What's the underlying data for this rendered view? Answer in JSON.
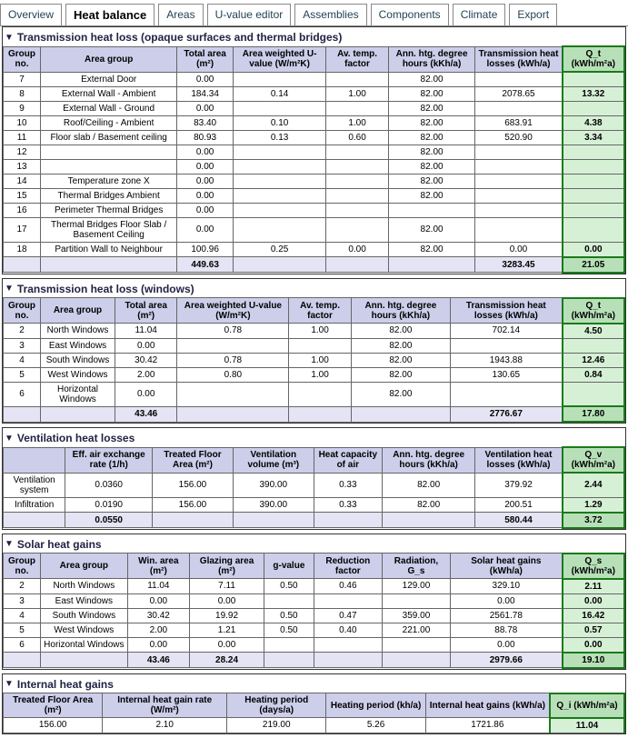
{
  "tabs": [
    "Overview",
    "Heat balance",
    "Areas",
    "U-value editor",
    "Assemblies",
    "Components",
    "Climate",
    "Export"
  ],
  "activeTab": 1,
  "s1": {
    "title": "Transmission heat loss (opaque surfaces and thermal bridges)",
    "headers": [
      "Group no.",
      "Area group",
      "Total area (m²)",
      "Area weighted U-value (W/m²K)",
      "Av. temp. factor",
      "Ann. htg. degree hours (kKh/a)",
      "Transmission heat losses (kWh/a)",
      "Q_t (kWh/m²a)"
    ],
    "rows": [
      [
        "7",
        "External Door",
        "0.00",
        "",
        "",
        "82.00",
        "",
        ""
      ],
      [
        "8",
        "External Wall - Ambient",
        "184.34",
        "0.14",
        "1.00",
        "82.00",
        "2078.65",
        "13.32"
      ],
      [
        "9",
        "External Wall - Ground",
        "0.00",
        "",
        "",
        "82.00",
        "",
        ""
      ],
      [
        "10",
        "Roof/Ceiling - Ambient",
        "83.40",
        "0.10",
        "1.00",
        "82.00",
        "683.91",
        "4.38"
      ],
      [
        "11",
        "Floor slab / Basement ceiling",
        "80.93",
        "0.13",
        "0.60",
        "82.00",
        "520.90",
        "3.34"
      ],
      [
        "12",
        "",
        "0.00",
        "",
        "",
        "82.00",
        "",
        ""
      ],
      [
        "13",
        "",
        "0.00",
        "",
        "",
        "82.00",
        "",
        ""
      ],
      [
        "14",
        "Temperature zone X",
        "0.00",
        "",
        "",
        "82.00",
        "",
        ""
      ],
      [
        "15",
        "Thermal Bridges Ambient",
        "0.00",
        "",
        "",
        "82.00",
        "",
        ""
      ],
      [
        "16",
        "Perimeter Thermal Bridges",
        "0.00",
        "",
        "",
        "",
        "",
        ""
      ],
      [
        "17",
        "Thermal Bridges Floor Slab / Basement Ceiling",
        "0.00",
        "",
        "",
        "82.00",
        "",
        ""
      ],
      [
        "18",
        "Partition Wall to Neighbour",
        "100.96",
        "0.25",
        "0.00",
        "82.00",
        "0.00",
        "0.00"
      ]
    ],
    "total": [
      "",
      "",
      "449.63",
      "",
      "",
      "",
      "3283.45",
      "21.05"
    ]
  },
  "s2": {
    "title": "Transmission heat loss (windows)",
    "headers": [
      "Group no.",
      "Area group",
      "Total area (m²)",
      "Area weighted U-value (W/m²K)",
      "Av. temp. factor",
      "Ann. htg. degree hours (kKh/a)",
      "Transmission heat losses (kWh/a)",
      "Q_t (kWh/m²a)"
    ],
    "rows": [
      [
        "2",
        "North Windows",
        "11.04",
        "0.78",
        "1.00",
        "82.00",
        "702.14",
        "4.50"
      ],
      [
        "3",
        "East Windows",
        "0.00",
        "",
        "",
        "82.00",
        "",
        ""
      ],
      [
        "4",
        "South Windows",
        "30.42",
        "0.78",
        "1.00",
        "82.00",
        "1943.88",
        "12.46"
      ],
      [
        "5",
        "West Windows",
        "2.00",
        "0.80",
        "1.00",
        "82.00",
        "130.65",
        "0.84"
      ],
      [
        "6",
        "Horizontal Windows",
        "0.00",
        "",
        "",
        "82.00",
        "",
        ""
      ]
    ],
    "total": [
      "",
      "",
      "43.46",
      "",
      "",
      "",
      "2776.67",
      "17.80"
    ]
  },
  "s3": {
    "title": "Ventilation heat losses",
    "headers": [
      "",
      "Eff. air exchange rate (1/h)",
      "Treated Floor Area (m²)",
      "Ventilation volume (m³)",
      "Heat capacity of air",
      "Ann. htg. degree hours (kKh/a)",
      "Ventilation heat losses (kWh/a)",
      "Q_v (kWh/m²a)"
    ],
    "rows": [
      [
        "Ventilation system",
        "0.0360",
        "156.00",
        "390.00",
        "0.33",
        "82.00",
        "379.92",
        "2.44"
      ],
      [
        "Infiltration",
        "0.0190",
        "156.00",
        "390.00",
        "0.33",
        "82.00",
        "200.51",
        "1.29"
      ]
    ],
    "total": [
      "",
      "0.0550",
      "",
      "",
      "",
      "",
      "580.44",
      "3.72"
    ]
  },
  "s4": {
    "title": "Solar heat gains",
    "headers": [
      "Group no.",
      "Area group",
      "Win. area (m²)",
      "Glazing area (m²)",
      "g-value",
      "Reduction factor",
      "Radiation, G_s",
      "Solar heat gains (kWh/a)",
      "Q_s (kWh/m²a)"
    ],
    "rows": [
      [
        "2",
        "North Windows",
        "11.04",
        "7.11",
        "0.50",
        "0.46",
        "129.00",
        "329.10",
        "2.11"
      ],
      [
        "3",
        "East Windows",
        "0.00",
        "0.00",
        "",
        "",
        "",
        "0.00",
        "0.00"
      ],
      [
        "4",
        "South Windows",
        "30.42",
        "19.92",
        "0.50",
        "0.47",
        "359.00",
        "2561.78",
        "16.42"
      ],
      [
        "5",
        "West Windows",
        "2.00",
        "1.21",
        "0.50",
        "0.40",
        "221.00",
        "88.78",
        "0.57"
      ],
      [
        "6",
        "Horizontal Windows",
        "0.00",
        "0.00",
        "",
        "",
        "",
        "0.00",
        "0.00"
      ]
    ],
    "total": [
      "",
      "",
      "43.46",
      "28.24",
      "",
      "",
      "",
      "2979.66",
      "19.10"
    ]
  },
  "s5": {
    "title": "Internal heat gains",
    "headers": [
      "Treated Floor Area (m²)",
      "Internal heat gain rate (W/m²)",
      "Heating period (days/a)",
      "Heating period (kh/a)",
      "Internal heat gains (kWh/a)",
      "Q_i (kWh/m²a)"
    ],
    "rows": [
      [
        "156.00",
        "2.10",
        "219.00",
        "5.26",
        "1721.86",
        "11.04"
      ]
    ]
  }
}
